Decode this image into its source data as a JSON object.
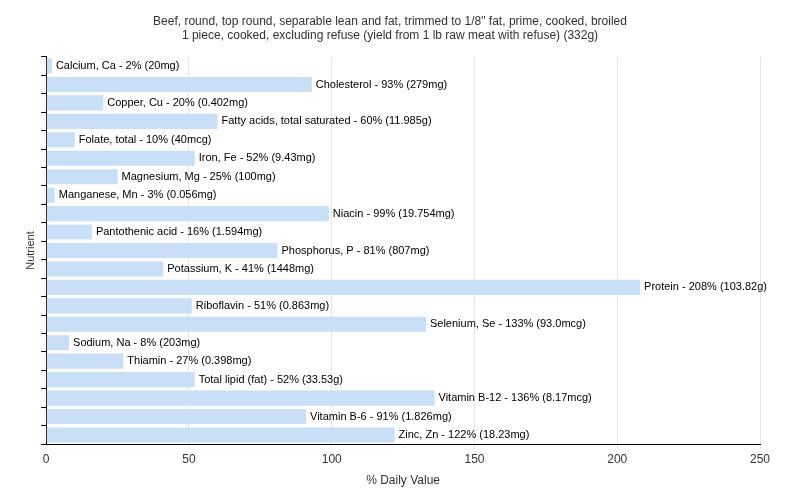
{
  "chart_data": {
    "type": "bar",
    "orientation": "horizontal",
    "title": [
      "Beef, round, top round, separable lean and fat, trimmed to 1/8\" fat, prime, cooked, broiled",
      "1 piece, cooked, excluding refuse (yield from 1 lb raw meat with refuse) (332g)"
    ],
    "x_label": "% Daily Value",
    "y_label": "Nutrient",
    "categories": [
      null,
      null,
      null,
      null,
      null,
      null,
      null,
      null,
      null,
      null,
      null,
      null,
      null,
      null,
      null,
      null,
      null,
      null,
      null,
      null,
      null
    ],
    "values": [
      2,
      93,
      20,
      60,
      10,
      52,
      25,
      3,
      99,
      16,
      81,
      41,
      208,
      51,
      133,
      8,
      27,
      52,
      136,
      91,
      122
    ],
    "value_labels": [
      "Calcium, Ca - 2% (20mg)",
      "Cholesterol - 93% (279mg)",
      "Copper, Cu - 20% (0.402mg)",
      "Fatty acids, total saturated - 60% (11.985g)",
      "Folate, total - 10% (40mcg)",
      "Iron, Fe - 52% (9.43mg)",
      "Magnesium, Mg - 25% (100mg)",
      "Manganese, Mn - 3% (0.056mg)",
      "Niacin - 99% (19.754mg)",
      "Pantothenic acid - 16% (1.594mg)",
      "Phosphorus, P - 81% (807mg)",
      "Potassium, K - 41% (1448mg)",
      "Protein - 208% (103.82g)",
      "Riboflavin - 51% (0.863mg)",
      "Selenium, Se - 133% (93.0mcg)",
      "Sodium, Na - 8% (203mg)",
      "Thiamin - 27% (0.398mg)",
      "Total lipid (fat) - 52% (33.53g)",
      "Vitamin B-12 - 136% (8.17mcg)",
      "Vitamin B-6 - 91% (1.826mg)",
      "Zinc, Zn - 122% (18.23mg)"
    ],
    "color": "#c9dff8",
    "xlim": [
      0,
      250
    ],
    "xticks": [
      0,
      50,
      100,
      150,
      200,
      250
    ],
    "grid": true,
    "data_labels": true,
    "tick_labels": "x"
  }
}
